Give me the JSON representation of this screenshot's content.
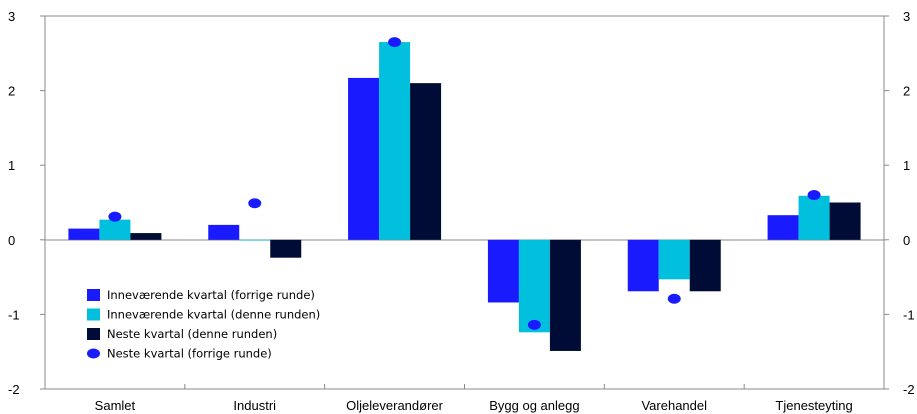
{
  "chart_data": {
    "type": "bar",
    "categories": [
      "Samlet",
      "Industri",
      "Oljeleverandører",
      "Bygg og anlegg",
      "Varehandel",
      "Tjenesteyting"
    ],
    "series": [
      {
        "name": "Inneværende kvartal (forrige runde)",
        "type": "bar",
        "color": "#1a1aff",
        "values": [
          0.15,
          0.2,
          2.17,
          -0.84,
          -0.69,
          0.33
        ]
      },
      {
        "name": "Inneværende kvartal (denne runden)",
        "type": "bar",
        "color": "#00c0de",
        "values": [
          0.27,
          -0.01,
          2.65,
          -1.24,
          -0.53,
          0.59
        ]
      },
      {
        "name": "Neste kvartal (denne runden)",
        "type": "bar",
        "color": "#000c36",
        "values": [
          0.09,
          -0.24,
          2.1,
          -1.49,
          -0.69,
          0.5
        ]
      },
      {
        "name": "Neste kvartal (forrige runde)",
        "type": "dot",
        "color": "#1a1aff",
        "values": [
          0.31,
          0.49,
          2.65,
          -1.14,
          -0.79,
          0.6
        ]
      }
    ],
    "yticks": [
      "3",
      "2",
      "1",
      "0",
      "-1",
      "-2"
    ],
    "ylim": [
      -2,
      3
    ],
    "title": "",
    "xlabel": "",
    "ylabel": "",
    "legend_position": "lower-left",
    "grid": false
  }
}
